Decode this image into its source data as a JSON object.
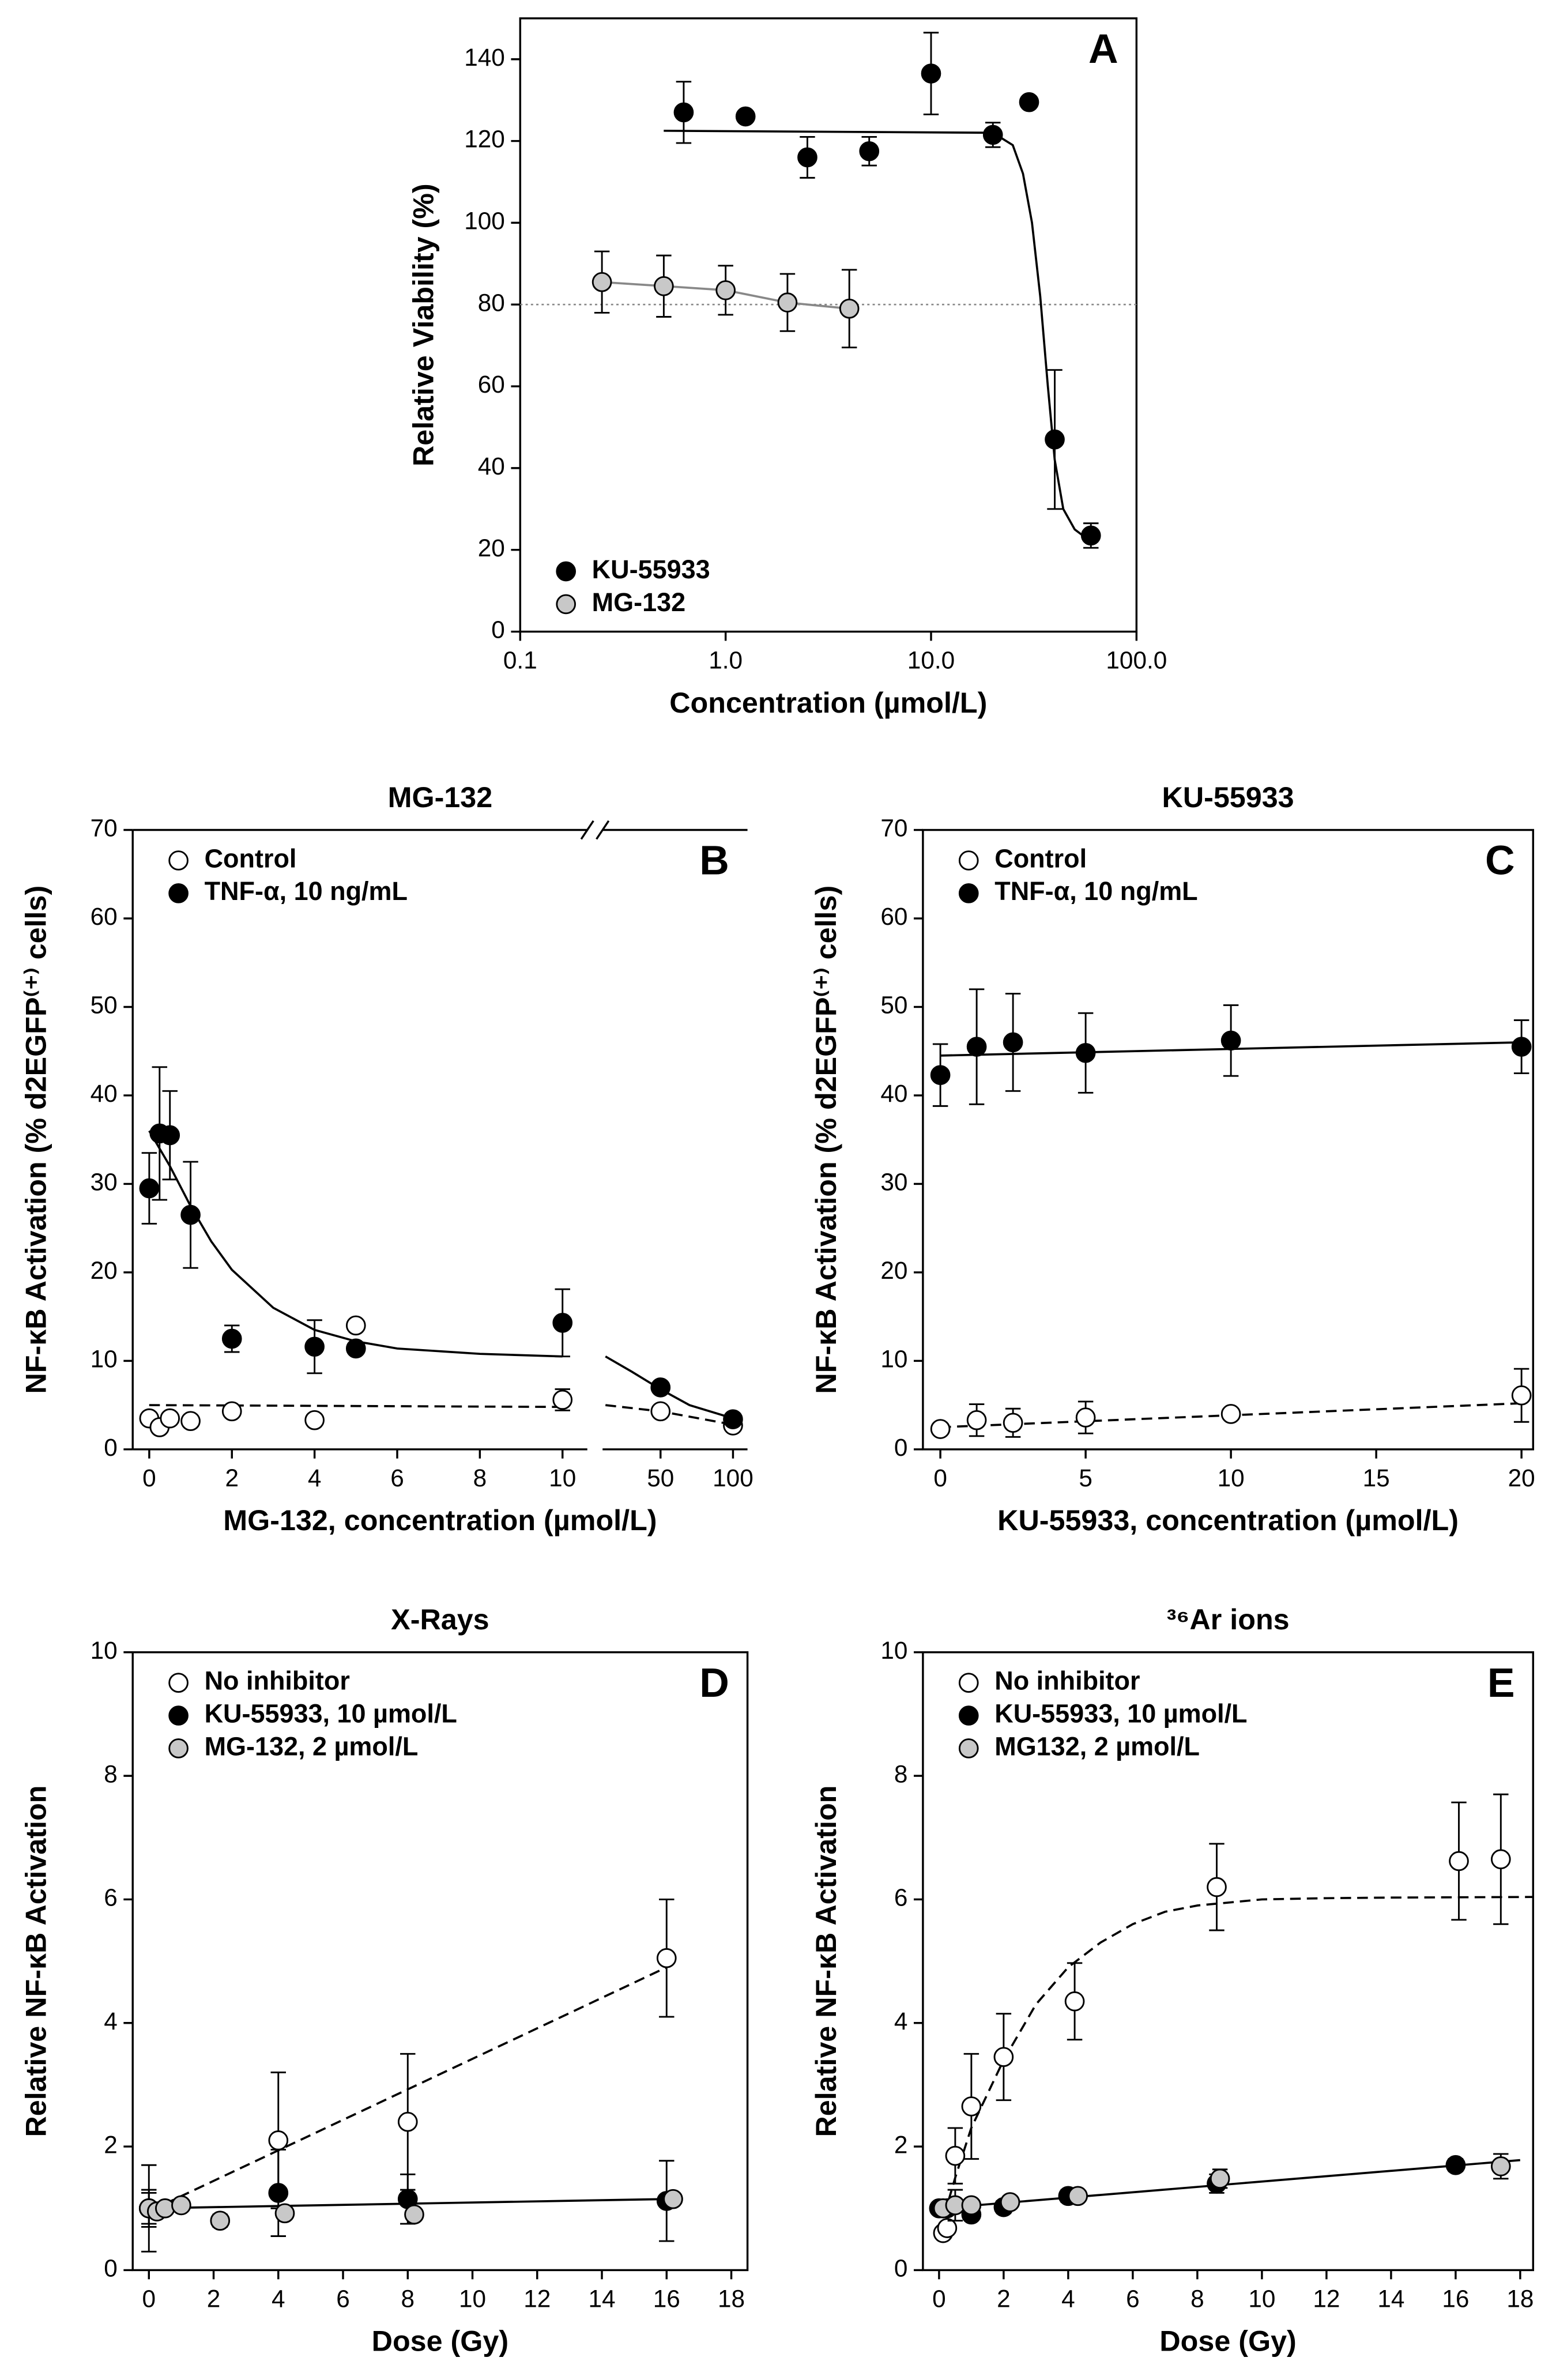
{
  "chart_data": [
    {
      "type": "scatter",
      "panel_label": "A",
      "x_label": "Concentration (µmol/L)",
      "y_label": "Relative Viability (%)",
      "log_x": true,
      "xlim": [
        0.1,
        100
      ],
      "xticks": [
        0.1,
        {
          "value": 1,
          "label": "1.0"
        },
        {
          "value": 10,
          "label": "10.0"
        },
        {
          "value": 100,
          "label": "100.0"
        }
      ],
      "ylim": [
        0,
        150
      ],
      "yticks": [
        0,
        20,
        40,
        60,
        80,
        100,
        120,
        140
      ],
      "reference_line": 80,
      "legend": "lower left",
      "series": [
        {
          "name": "KU-55933",
          "color": "#000000",
          "x": [
            0.625,
            1.25,
            2.5,
            5,
            10,
            20,
            30,
            40,
            60
          ],
          "values": [
            127,
            126,
            116,
            117.5,
            136.5,
            121.5,
            129.5,
            47,
            23.5
          ],
          "errors": [
            7.5,
            null,
            5,
            3.5,
            10,
            3,
            null,
            17,
            3
          ],
          "fit": {
            "style": "solid",
            "x": [
              0.5,
              20,
              25,
              28,
              31,
              34,
              37,
              40,
              44,
              50,
              60
            ],
            "y": [
              122.5,
              122,
              119,
              112,
              100,
              82,
              60,
              42,
              30,
              25,
              22
            ]
          }
        },
        {
          "name": "MG-132",
          "color": "#c8c8c8",
          "connect": true,
          "x": [
            0.25,
            0.5,
            1,
            2,
            4
          ],
          "values": [
            85.5,
            84.5,
            83.5,
            80.5,
            79
          ],
          "errors": [
            7.5,
            7.5,
            6,
            7,
            9.5
          ]
        }
      ]
    },
    {
      "type": "scatter",
      "panel_label": "B",
      "title": "MG-132",
      "x_label": "MG-132, concentration (µmol/L)",
      "y_label": "NF-κB Activation (% d2EGFP⁽⁺⁾ cells)",
      "xlim": [
        -0.4,
        10.6
      ],
      "xticks": [
        0,
        2,
        4,
        6,
        8,
        10
      ],
      "x2lim": [
        10,
        110
      ],
      "x2ticks": [
        50,
        100
      ],
      "ylim": [
        0,
        70
      ],
      "yticks": [
        0,
        10,
        20,
        30,
        40,
        50,
        60,
        70
      ],
      "legend": "upper left",
      "series": [
        {
          "name": "Control",
          "color": "#ffffff",
          "x": [
            0,
            0.25,
            0.5,
            1,
            2,
            4,
            5,
            10,
            50,
            100
          ],
          "values": [
            3.5,
            2.5,
            3.5,
            3.2,
            4.3,
            3.3,
            14,
            5.6,
            4.3,
            2.7
          ],
          "errors": [
            null,
            null,
            null,
            null,
            null,
            null,
            null,
            1.2,
            null,
            null
          ],
          "fit": {
            "style": "dashed",
            "x": [
              0,
              10,
              12,
              50,
              100
            ],
            "y": [
              5,
              4.8,
              5,
              4.3,
              2.8
            ]
          }
        },
        {
          "name": "TNF-α, 10 ng/mL",
          "color": "#000000",
          "x": [
            0,
            0.25,
            0.5,
            1,
            2,
            4,
            5,
            10,
            50,
            100
          ],
          "values": [
            29.5,
            35.7,
            35.5,
            26.5,
            12.5,
            11.6,
            11.4,
            14.3,
            7,
            3.4
          ],
          "errors": [
            4,
            7.5,
            5,
            6,
            1.5,
            3,
            null,
            3.8,
            null,
            null
          ],
          "fit": {
            "style": "solid",
            "x": [
              0,
              0.5,
              1,
              1.5,
              2,
              3,
              4,
              5,
              6,
              8,
              10,
              12,
              30,
              50,
              70,
              100
            ],
            "y": [
              36,
              32,
              27.5,
              23.5,
              20.3,
              16,
              13.5,
              12.2,
              11.4,
              10.8,
              10.5,
              10.5,
              8.8,
              6.8,
              5,
              3.5
            ]
          }
        }
      ]
    },
    {
      "type": "scatter",
      "panel_label": "C",
      "title": "KU-55933",
      "x_label": "KU-55933, concentration (µmol/L)",
      "y_label": "NF-κB Activation (% d2EGFP⁽⁺⁾ cells)",
      "xlim": [
        -0.6,
        20.4
      ],
      "xticks": [
        0,
        5,
        10,
        15,
        20
      ],
      "ylim": [
        0,
        70
      ],
      "yticks": [
        0,
        10,
        20,
        30,
        40,
        50,
        60,
        70
      ],
      "legend": "upper left",
      "series": [
        {
          "name": "Control",
          "color": "#ffffff",
          "x": [
            0,
            1.25,
            2.5,
            5,
            10,
            20
          ],
          "values": [
            2.3,
            3.3,
            3,
            3.6,
            4,
            6.1
          ],
          "errors": [
            null,
            1.8,
            1.6,
            1.8,
            null,
            3
          ],
          "fit": {
            "style": "dashed",
            "x": [
              0,
              20
            ],
            "y": [
              2.5,
              5.2
            ]
          }
        },
        {
          "name": "TNF-α, 10 ng/mL",
          "color": "#000000",
          "x": [
            0,
            1.25,
            2.5,
            5,
            10,
            20
          ],
          "values": [
            42.3,
            45.5,
            46,
            44.8,
            46.2,
            45.5
          ],
          "errors": [
            3.5,
            6.5,
            5.5,
            4.5,
            4,
            3
          ],
          "fit": {
            "style": "solid",
            "x": [
              0,
              20
            ],
            "y": [
              44.5,
              46
            ]
          }
        }
      ]
    },
    {
      "type": "scatter",
      "panel_label": "D",
      "title": "X-Rays",
      "x_label": "Dose (Gy)",
      "y_label": "Relative NF-κB Activation",
      "xlim": [
        -0.5,
        18.5
      ],
      "xticks": [
        0,
        2,
        4,
        6,
        8,
        10,
        12,
        14,
        16,
        18
      ],
      "ylim": [
        0,
        10
      ],
      "yticks": [
        0,
        2,
        4,
        6,
        8,
        10
      ],
      "legend": "upper left",
      "series": [
        {
          "name": "No inhibitor",
          "color": "#ffffff",
          "x": [
            0,
            4,
            8,
            16
          ],
          "values": [
            1,
            2.1,
            2.4,
            5.05
          ],
          "errors": [
            0.7,
            1.1,
            1.1,
            0.95
          ],
          "fit": {
            "style": "dashed",
            "x": [
              0,
              16
            ],
            "y": [
              0.95,
              4.9
            ]
          }
        },
        {
          "name": "KU-55933, 10 µmol/L",
          "color": "#000000",
          "x": [
            0,
            4,
            8,
            16
          ],
          "values": [
            1,
            1.25,
            1.15,
            1.12
          ],
          "errors": [
            0.25,
            0.7,
            0.4,
            0.65
          ],
          "fit": {
            "style": "solid",
            "x": [
              0,
              16
            ],
            "y": [
              1,
              1.15
            ]
          }
        },
        {
          "name": "MG-132, 2 µmol/L",
          "color": "#c8c8c8",
          "x": [
            0,
            0.25,
            0.5,
            1,
            2.2,
            4.2,
            8.2,
            16.2
          ],
          "values": [
            1,
            0.95,
            1,
            1.05,
            0.8,
            0.92,
            0.9,
            1.15
          ],
          "errors": [
            0.3,
            null,
            null,
            null,
            0.1,
            null,
            null,
            null
          ]
        }
      ]
    },
    {
      "type": "scatter",
      "panel_label": "E",
      "title": "³⁶Ar ions",
      "x_label": "Dose (Gy)",
      "y_label": "Relative NF-κB Activation",
      "xlim": [
        -0.5,
        18.4
      ],
      "xticks": [
        0,
        2,
        4,
        6,
        8,
        10,
        12,
        14,
        16,
        18
      ],
      "ylim": [
        0,
        10
      ],
      "yticks": [
        0,
        2,
        4,
        6,
        8,
        10
      ],
      "legend": "upper left",
      "series": [
        {
          "name": "No inhibitor",
          "color": "#ffffff",
          "x": [
            0.125,
            0.25,
            0.5,
            1,
            2,
            4.2,
            8.6,
            16.1,
            17.4
          ],
          "values": [
            0.6,
            0.68,
            1.85,
            2.65,
            3.45,
            4.35,
            6.2,
            6.62,
            6.65
          ],
          "errors": [
            null,
            null,
            0.45,
            0.85,
            0.7,
            0.62,
            0.7,
            0.95,
            1.05
          ],
          "fit": {
            "style": "dashed",
            "x": [
              0,
              0.5,
              1,
              2,
              3,
              4,
              5,
              6,
              7,
              8,
              10,
              12,
              14,
              18.4
            ],
            "y": [
              0.6,
              1.5,
              2.3,
              3.4,
              4.3,
              4.9,
              5.3,
              5.6,
              5.8,
              5.9,
              6,
              6.02,
              6.03,
              6.04
            ]
          }
        },
        {
          "name": "KU-55933, 10 µmol/L",
          "color": "#000000",
          "x": [
            0,
            0.25,
            1,
            2,
            4,
            8.6,
            16
          ],
          "values": [
            1,
            1,
            0.9,
            1.02,
            1.2,
            1.4,
            1.7
          ],
          "errors": [
            null,
            null,
            null,
            0.1,
            0.1,
            0.15,
            0.1
          ],
          "fit": {
            "style": "solid",
            "x": [
              0,
              18
            ],
            "y": [
              1,
              1.78
            ]
          }
        },
        {
          "name": "MG132, 2 µmol/L",
          "color": "#c8c8c8",
          "x": [
            0.125,
            0.5,
            1,
            2.2,
            4.3,
            8.7,
            17.4
          ],
          "values": [
            1,
            1.05,
            1.05,
            1.1,
            1.2,
            1.48,
            1.68
          ],
          "errors": [
            null,
            0.25,
            null,
            null,
            null,
            0.15,
            0.2
          ]
        }
      ]
    }
  ]
}
